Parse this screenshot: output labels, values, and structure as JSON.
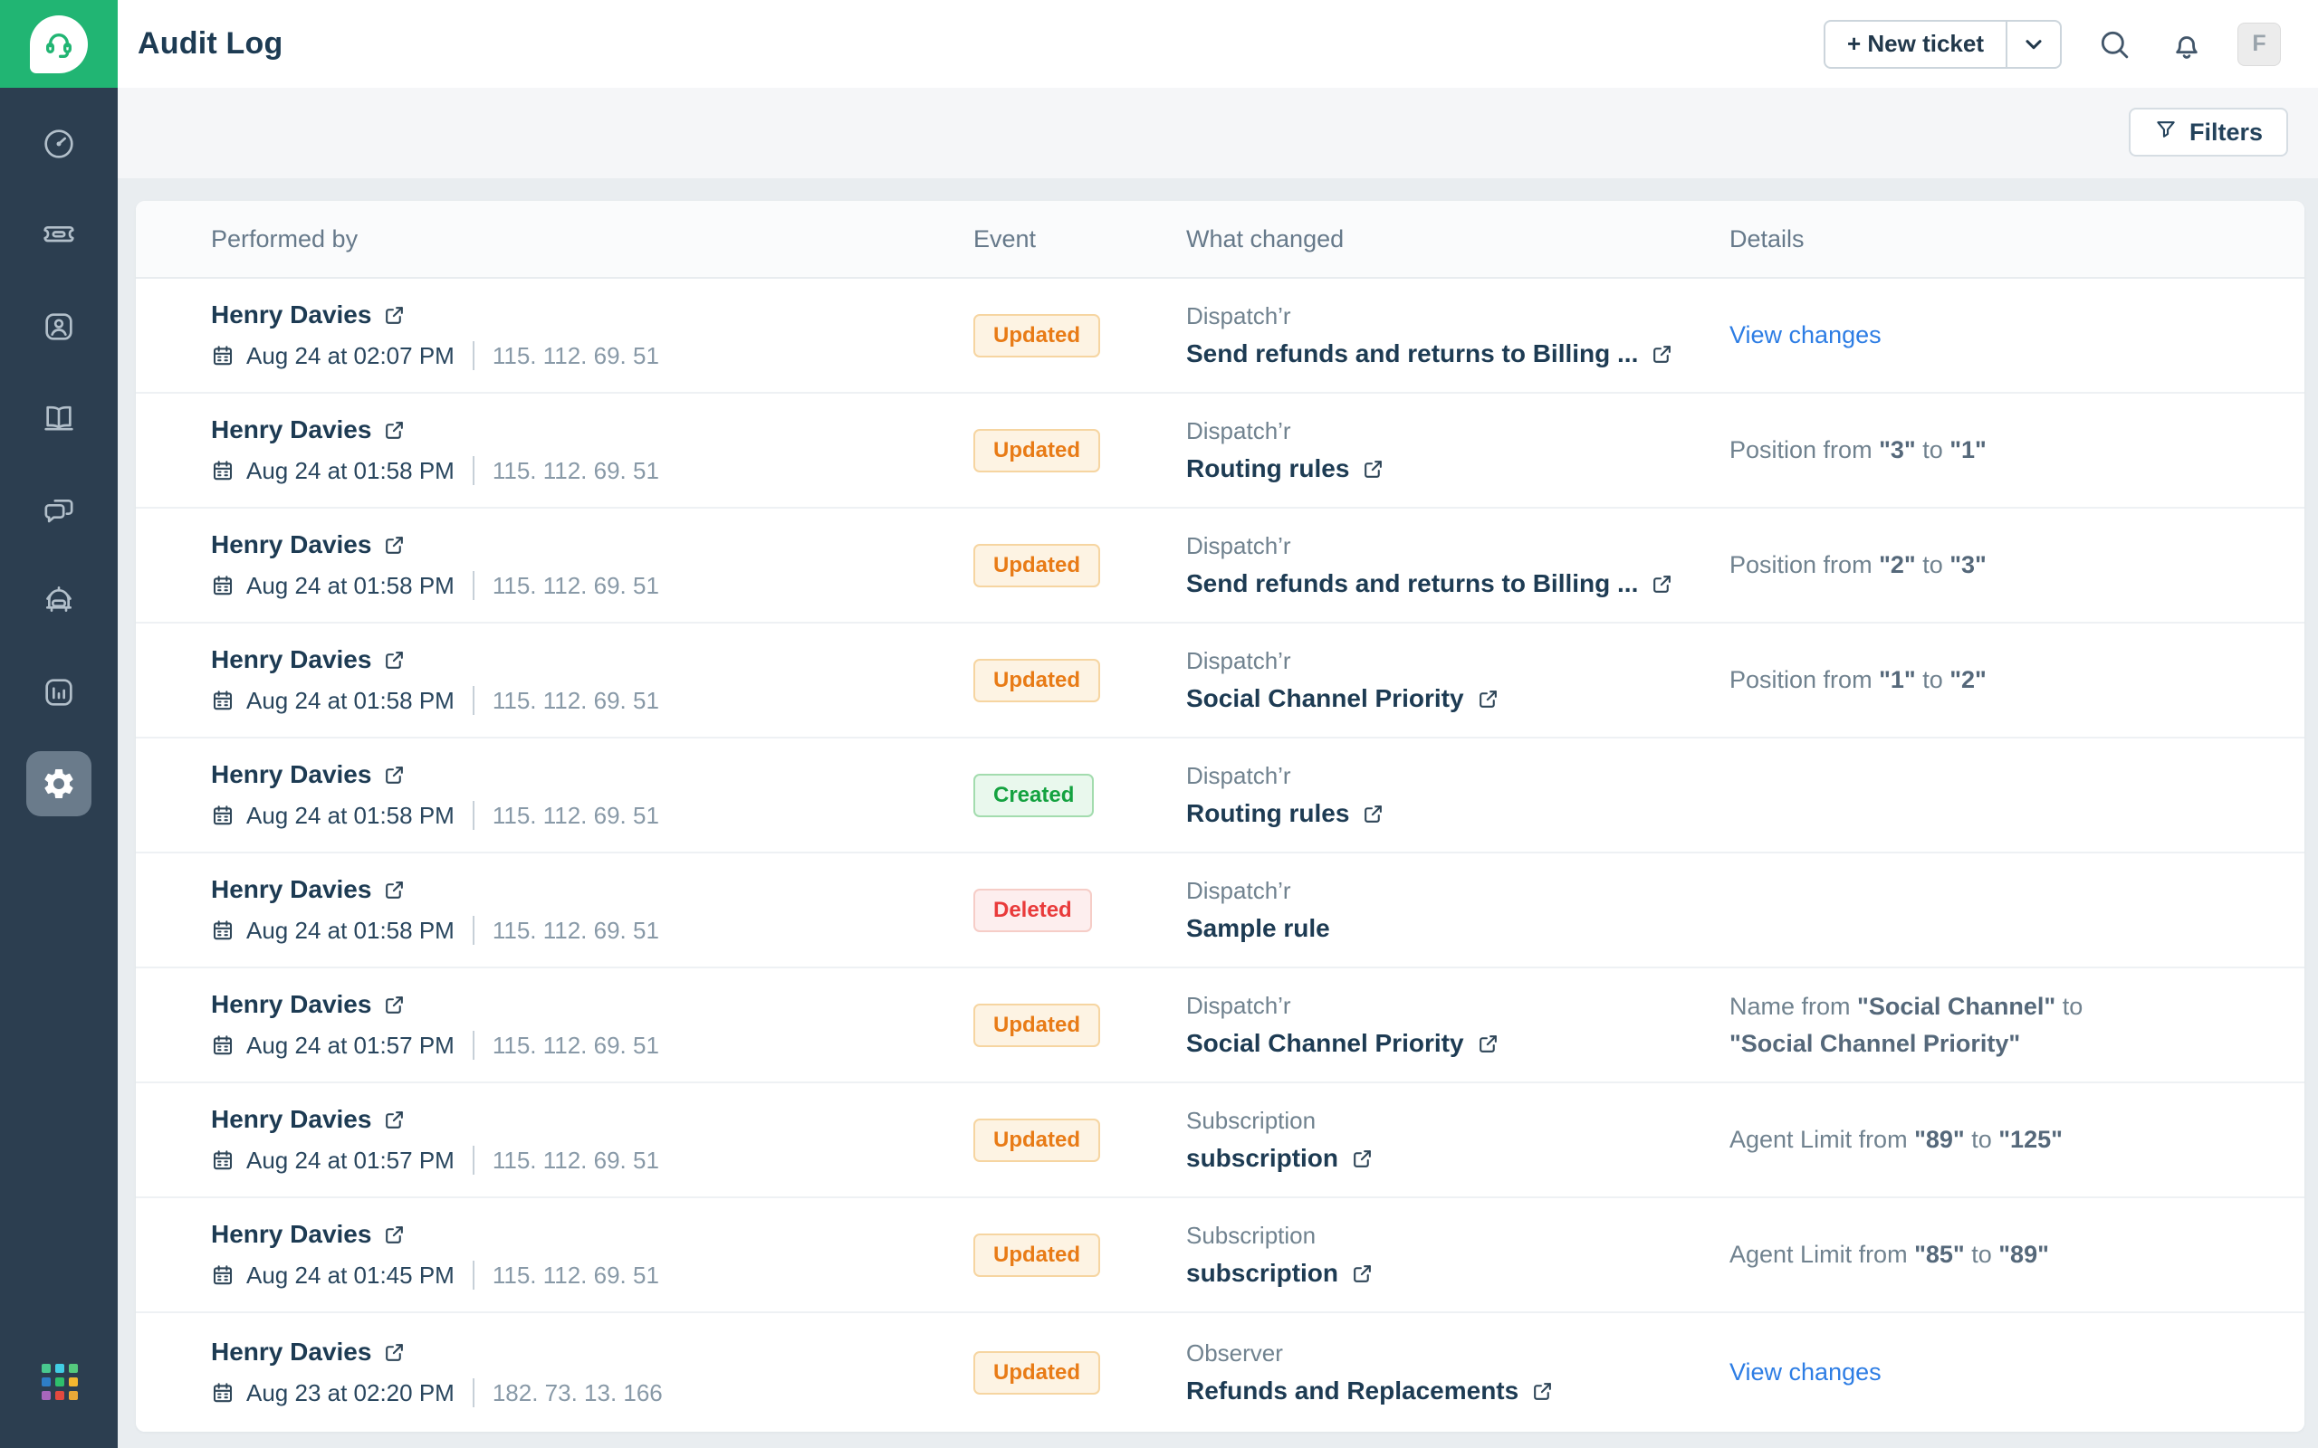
{
  "colors": {
    "brand_green": "#21b573",
    "sidebar_navy": "#2c3e50",
    "link_blue": "#2d7de4",
    "app_grid": [
      "#49c98f",
      "#41cde4",
      "#55c97d",
      "#2e7ec6",
      "#2fbf6c",
      "#f3b62f",
      "#a766bb",
      "#e2493f",
      "#eaa937"
    ]
  },
  "sidebar": {
    "items": [
      {
        "id": "dashboard",
        "icon": "dashboard-icon",
        "active": false
      },
      {
        "id": "tickets",
        "icon": "ticket-icon",
        "active": false
      },
      {
        "id": "contacts",
        "icon": "contacts-icon",
        "active": false
      },
      {
        "id": "solutions",
        "icon": "book-icon",
        "active": false
      },
      {
        "id": "forums",
        "icon": "chat-icon",
        "active": false
      },
      {
        "id": "freddy",
        "icon": "bot-icon",
        "active": false
      },
      {
        "id": "analytics",
        "icon": "analytics-icon",
        "active": false
      },
      {
        "id": "admin",
        "icon": "gear-icon",
        "active": true
      }
    ]
  },
  "topbar": {
    "title": "Audit Log",
    "new_ticket_label": "+ New ticket",
    "avatar_initial": "F"
  },
  "filters": {
    "label": "Filters"
  },
  "table": {
    "columns": [
      "Performed by",
      "Event",
      "What changed",
      "Details"
    ],
    "badge_styles": {
      "Updated": {
        "color": "#e87b16",
        "bg": "#fdf3e3",
        "border": "#f6d5a1"
      },
      "Created": {
        "color": "#14a240",
        "bg": "#e9f8ed",
        "border": "#a3dcae"
      },
      "Deleted": {
        "color": "#e93b3b",
        "bg": "#fdeeee",
        "border": "#f6cdc7"
      }
    },
    "rows": [
      {
        "performer": "Henry Davies",
        "timestamp": "Aug 24 at 02:07 PM",
        "ip": "115. 112. 69. 51",
        "event": "Updated",
        "category": "Dispatch’r",
        "item": "Send refunds and returns to Billing ...",
        "item_link": true,
        "details": {
          "type": "link",
          "label": "View changes"
        }
      },
      {
        "performer": "Henry Davies",
        "timestamp": "Aug 24 at 01:58 PM",
        "ip": "115. 112. 69. 51",
        "event": "Updated",
        "category": "Dispatch’r",
        "item": "Routing rules",
        "item_link": true,
        "details": {
          "type": "text",
          "segments": [
            {
              "text": "Position from ",
              "bold": false
            },
            {
              "text": "\"3\"",
              "bold": true
            },
            {
              "text": " to ",
              "bold": false
            },
            {
              "text": "\"1\"",
              "bold": true
            }
          ]
        }
      },
      {
        "performer": "Henry Davies",
        "timestamp": "Aug 24 at 01:58 PM",
        "ip": "115. 112. 69. 51",
        "event": "Updated",
        "category": "Dispatch’r",
        "item": "Send refunds and returns to Billing ...",
        "item_link": true,
        "details": {
          "type": "text",
          "segments": [
            {
              "text": "Position from ",
              "bold": false
            },
            {
              "text": "\"2\"",
              "bold": true
            },
            {
              "text": " to ",
              "bold": false
            },
            {
              "text": "\"3\"",
              "bold": true
            }
          ]
        }
      },
      {
        "performer": "Henry Davies",
        "timestamp": "Aug 24 at 01:58 PM",
        "ip": "115. 112. 69. 51",
        "event": "Updated",
        "category": "Dispatch’r",
        "item": "Social Channel Priority",
        "item_link": true,
        "details": {
          "type": "text",
          "segments": [
            {
              "text": "Position from ",
              "bold": false
            },
            {
              "text": "\"1\"",
              "bold": true
            },
            {
              "text": " to ",
              "bold": false
            },
            {
              "text": "\"2\"",
              "bold": true
            }
          ]
        }
      },
      {
        "performer": "Henry Davies",
        "timestamp": "Aug 24 at 01:58 PM",
        "ip": "115. 112. 69. 51",
        "event": "Created",
        "category": "Dispatch’r",
        "item": "Routing rules",
        "item_link": true,
        "details": null
      },
      {
        "performer": "Henry Davies",
        "timestamp": "Aug 24 at 01:58 PM",
        "ip": "115. 112. 69. 51",
        "event": "Deleted",
        "category": "Dispatch’r",
        "item": "Sample rule",
        "item_link": false,
        "details": null
      },
      {
        "performer": "Henry Davies",
        "timestamp": "Aug 24 at 01:57 PM",
        "ip": "115. 112. 69. 51",
        "event": "Updated",
        "category": "Dispatch’r",
        "item": "Social Channel Priority",
        "item_link": true,
        "details": {
          "type": "text",
          "segments": [
            {
              "text": "Name from ",
              "bold": false
            },
            {
              "text": "\"Social Channel\"",
              "bold": true
            },
            {
              "text": " to ",
              "bold": false
            },
            {
              "text": "\"Social Channel Priority\"",
              "bold": true
            }
          ]
        }
      },
      {
        "performer": "Henry Davies",
        "timestamp": "Aug 24 at 01:57 PM",
        "ip": "115. 112. 69. 51",
        "event": "Updated",
        "category": "Subscription",
        "item": "subscription",
        "item_link": true,
        "details": {
          "type": "text",
          "segments": [
            {
              "text": "Agent Limit from ",
              "bold": false
            },
            {
              "text": "\"89\"",
              "bold": true
            },
            {
              "text": " to ",
              "bold": false
            },
            {
              "text": "\"125\"",
              "bold": true
            }
          ]
        }
      },
      {
        "performer": "Henry Davies",
        "timestamp": "Aug 24 at 01:45 PM",
        "ip": "115. 112. 69. 51",
        "event": "Updated",
        "category": "Subscription",
        "item": "subscription",
        "item_link": true,
        "details": {
          "type": "text",
          "segments": [
            {
              "text": "Agent Limit from ",
              "bold": false
            },
            {
              "text": "\"85\"",
              "bold": true
            },
            {
              "text": " to ",
              "bold": false
            },
            {
              "text": "\"89\"",
              "bold": true
            }
          ]
        }
      },
      {
        "performer": "Henry Davies",
        "timestamp": "Aug 23 at 02:20 PM",
        "ip": "182. 73. 13. 166",
        "event": "Updated",
        "category": "Observer",
        "item": "Refunds and Replacements",
        "item_link": true,
        "details": {
          "type": "link",
          "label": "View changes"
        }
      }
    ]
  }
}
